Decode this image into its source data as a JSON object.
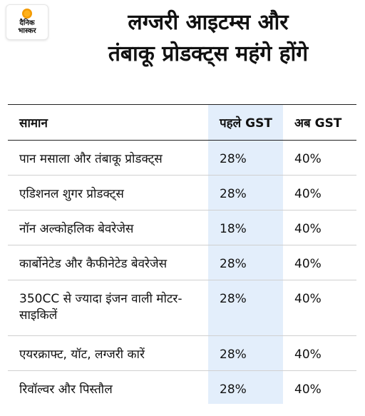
{
  "brand": {
    "logo_text_line1": "दैनिक",
    "logo_text_line2": "भास्कर",
    "sun_color": "#f7a21b"
  },
  "header": {
    "title_line1": "लग्जरी आइटम्स और",
    "title_line2": "तंबाकू प्रोडक्ट्स महंगे होंगे"
  },
  "table": {
    "columns": [
      "सामान",
      "पहले GST",
      "अब GST"
    ],
    "highlight_color": "#e3eefb",
    "rows": [
      {
        "item": "पान मसाला और तंबाकू प्रोडक्ट्स",
        "before": "28%",
        "now": "40%"
      },
      {
        "item": "एडिशनल शुगर प्रोडक्ट्स",
        "before": "28%",
        "now": "40%"
      },
      {
        "item": "नॉन अल्कोहलिक बेवरेजेस",
        "before": "18%",
        "now": "40%"
      },
      {
        "item": "कार्बोनेटेड और कैफीनेटेड बेवरेजेस",
        "before": "28%",
        "now": "40%"
      },
      {
        "item": "350CC से ज्यादा इंजन वाली मोटर-साइकिलें",
        "before": "28%",
        "now": "40%"
      },
      {
        "item": "एयरक्राफ्ट, यॉट, लग्जरी कारें",
        "before": "28%",
        "now": "40%"
      },
      {
        "item": "रिवॉल्वर और पिस्तौल",
        "before": "28%",
        "now": "40%"
      }
    ]
  }
}
